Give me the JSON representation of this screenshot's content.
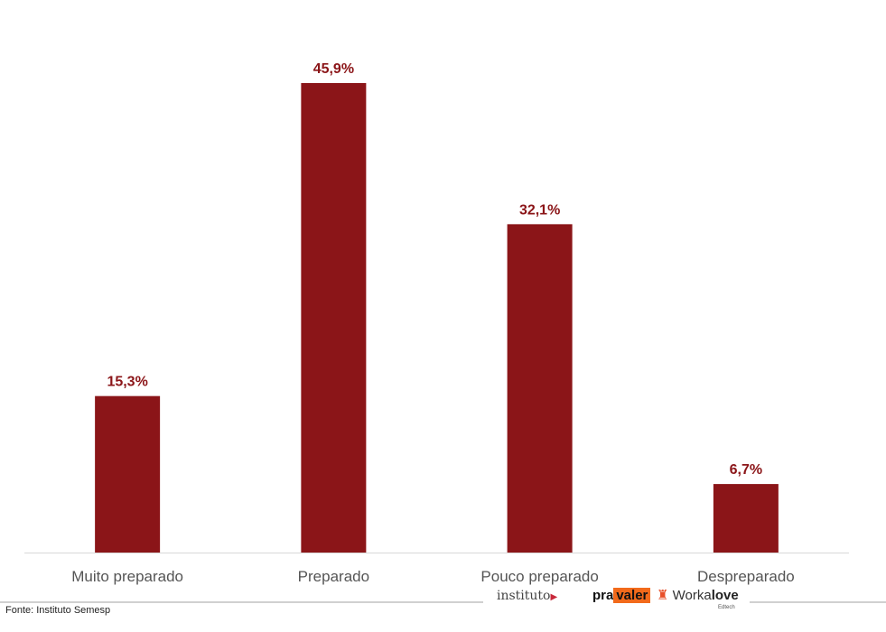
{
  "chart_data": {
    "type": "bar",
    "title": "",
    "xlabel": "",
    "ylabel": "",
    "categories": [
      "Muito preparado",
      "Preparado",
      "Pouco preparado",
      "Despreparado"
    ],
    "values": [
      15.3,
      45.9,
      32.1,
      6.7
    ],
    "data_labels": [
      "15,3%",
      "45,9%",
      "32,1%",
      "6,7%"
    ],
    "ylim": [
      0,
      50
    ],
    "grid": false,
    "bar_color": "#8b1518",
    "label_color": "#8b1518"
  },
  "footer": {
    "source": "Fonte: Instituto Semesp",
    "logos": {
      "instituto": "instituto",
      "pravaler_a": "pra",
      "pravaler_b": "valer",
      "workalove_a": "Worka",
      "workalove_b": "love",
      "workalove_sub": "Edtech"
    }
  }
}
